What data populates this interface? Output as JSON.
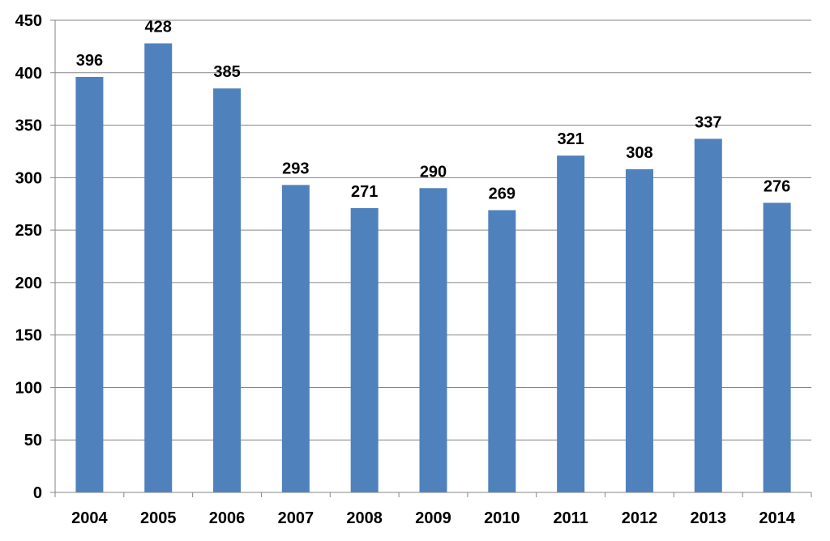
{
  "chart_data": {
    "type": "bar",
    "title": "",
    "xlabel": "",
    "ylabel": "",
    "categories": [
      "2004",
      "2005",
      "2006",
      "2007",
      "2008",
      "2009",
      "2010",
      "2011",
      "2012",
      "2013",
      "2014"
    ],
    "series": [
      {
        "values": [
          396,
          428,
          385,
          293,
          271,
          290,
          269,
          321,
          308,
          337,
          276
        ]
      }
    ],
    "ylim": [
      0,
      450
    ],
    "yticks": [
      0,
      50,
      100,
      150,
      200,
      250,
      300,
      350,
      400,
      450
    ],
    "grid": true,
    "legend": "none",
    "data_labels": true,
    "colors": {
      "bar": "#4F81BD",
      "grid": "#868686",
      "axis": "#868686",
      "text": "#000000"
    }
  }
}
